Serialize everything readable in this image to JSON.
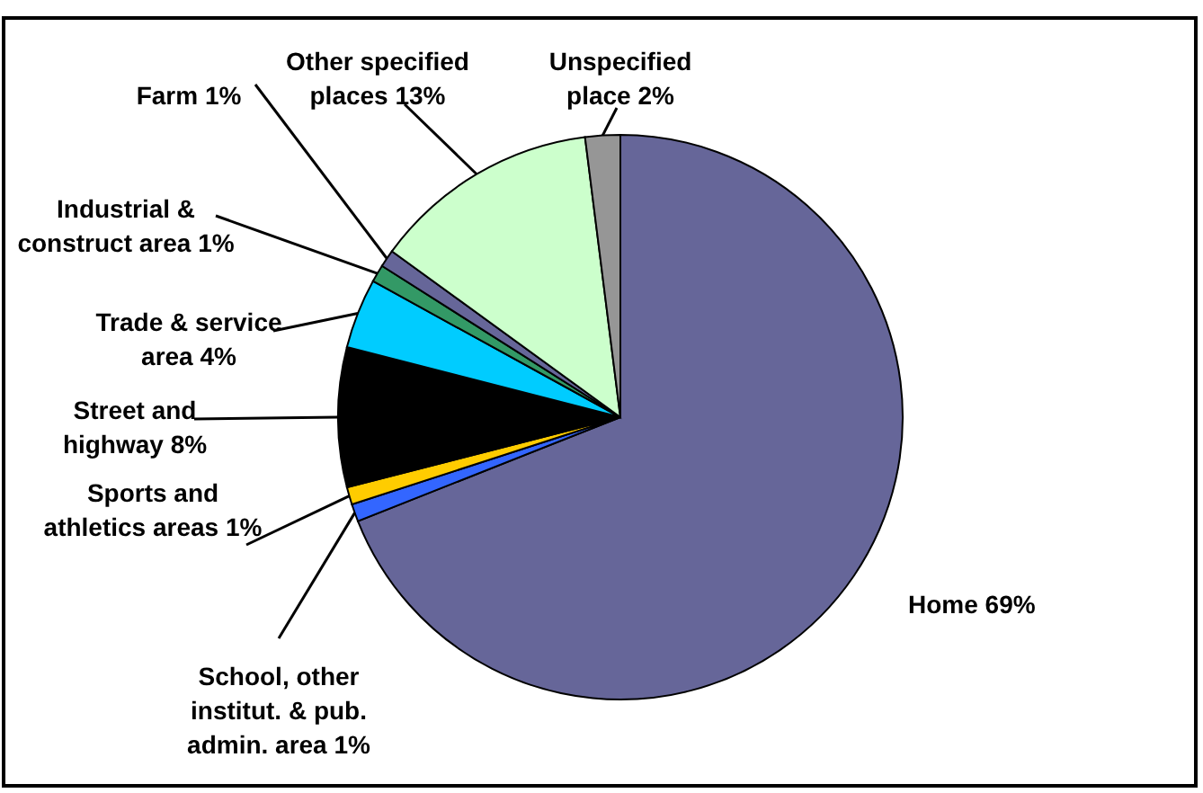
{
  "chart_data": {
    "type": "pie",
    "categories": [
      "Home",
      "School, other institut. & pub. admin. area",
      "Sports and athletics areas",
      "Street and highway",
      "Trade & service area",
      "Industrial & construct area",
      "Farm",
      "Other specified places",
      "Unspecified place"
    ],
    "values": [
      69,
      1,
      1,
      8,
      4,
      1,
      1,
      13,
      2
    ],
    "value_labels": [
      "69%",
      "1%",
      "1%",
      "8%",
      "4%",
      "1%",
      "1%",
      "13%",
      "2%"
    ],
    "colors": [
      "#666699",
      "#3366ff",
      "#ffcc00",
      "#000000",
      "#00ccff",
      "#339966",
      "#666699",
      "#ccffcc",
      "#969696"
    ]
  }
}
